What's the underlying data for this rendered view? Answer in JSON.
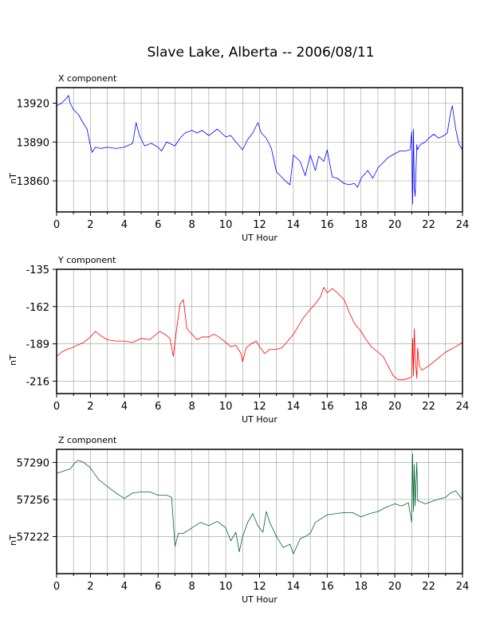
{
  "title": "Slave Lake, Alberta -- 2006/08/11",
  "chart_data": [
    {
      "type": "line",
      "panel_label": "X component",
      "xlabel": "UT Hour",
      "ylabel": "nT",
      "xlim": [
        0,
        24
      ],
      "xticks": [
        0,
        2,
        4,
        6,
        8,
        10,
        12,
        14,
        16,
        18,
        20,
        22,
        24
      ],
      "ylim": [
        13836,
        13932
      ],
      "yticks": [
        13860,
        13890,
        13920
      ],
      "grid": true,
      "color": "#0000ff",
      "x": [
        0,
        0.3,
        0.6,
        0.7,
        0.8,
        1.0,
        1.3,
        1.6,
        1.8,
        2.0,
        2.1,
        2.3,
        2.6,
        3.0,
        3.5,
        4.0,
        4.5,
        4.7,
        4.9,
        5.2,
        5.6,
        6.0,
        6.2,
        6.5,
        7.0,
        7.3,
        7.6,
        8.0,
        8.3,
        8.6,
        9.0,
        9.5,
        10.0,
        10.3,
        10.6,
        11.0,
        11.3,
        11.6,
        11.9,
        12.1,
        12.4,
        12.7,
        13.0,
        13.3,
        13.6,
        13.8,
        14.0,
        14.4,
        14.7,
        15.0,
        15.3,
        15.5,
        15.8,
        16.0,
        16.3,
        16.6,
        17.0,
        17.3,
        17.6,
        17.8,
        18.0,
        18.4,
        18.7,
        19.0,
        19.3,
        19.6,
        20.0,
        20.3,
        20.6,
        20.9,
        21.0,
        21.05,
        21.1,
        21.15,
        21.2,
        21.3,
        21.35,
        21.5,
        21.8,
        22.0,
        22.3,
        22.6,
        22.9,
        23.1,
        23.3,
        23.4,
        23.6,
        23.8,
        24.0
      ],
      "values": [
        13918,
        13920,
        13924,
        13926,
        13920,
        13915,
        13911,
        13904,
        13900,
        13887,
        13882,
        13886,
        13885,
        13886,
        13885,
        13886,
        13889,
        13905,
        13895,
        13887,
        13889,
        13886,
        13883,
        13890,
        13887,
        13893,
        13897,
        13899,
        13897,
        13899,
        13895,
        13900,
        13894,
        13895,
        13890,
        13884,
        13892,
        13897,
        13905,
        13897,
        13893,
        13885,
        13867,
        13863,
        13859,
        13857,
        13880,
        13875,
        13864,
        13880,
        13868,
        13879,
        13875,
        13884,
        13863,
        13862,
        13858,
        13857,
        13858,
        13855,
        13862,
        13868,
        13862,
        13870,
        13874,
        13878,
        13881,
        13883,
        13883,
        13884,
        13898,
        13842,
        13900,
        13855,
        13848,
        13888,
        13884,
        13888,
        13890,
        13893,
        13896,
        13893,
        13895,
        13897,
        13913,
        13918,
        13900,
        13888,
        13884
      ]
    },
    {
      "type": "line",
      "panel_label": "Y component",
      "xlabel": "UT Hour",
      "ylabel": "nT",
      "xlim": [
        0,
        24
      ],
      "xticks": [
        0,
        2,
        4,
        6,
        8,
        10,
        12,
        14,
        16,
        18,
        20,
        22,
        24
      ],
      "ylim": [
        -225,
        -135
      ],
      "yticks": [
        -135,
        -162,
        -189,
        -216
      ],
      "grid": true,
      "color": "#ff0000",
      "x": [
        0,
        0.3,
        0.6,
        0.9,
        1.2,
        1.6,
        2.0,
        2.3,
        2.6,
        3.0,
        3.5,
        4.0,
        4.5,
        5.0,
        5.5,
        5.8,
        6.1,
        6.4,
        6.7,
        6.9,
        7.1,
        7.3,
        7.5,
        7.7,
        8.0,
        8.3,
        8.6,
        9.0,
        9.3,
        9.6,
        10.0,
        10.3,
        10.6,
        10.9,
        11.0,
        11.2,
        11.5,
        11.8,
        12.0,
        12.3,
        12.6,
        13.0,
        13.3,
        13.6,
        14.0,
        14.3,
        14.6,
        15.0,
        15.3,
        15.6,
        15.8,
        16.0,
        16.3,
        16.6,
        17.0,
        17.3,
        17.6,
        18.0,
        18.3,
        18.6,
        19.0,
        19.3,
        19.6,
        19.9,
        20.2,
        20.5,
        20.8,
        21.0,
        21.05,
        21.1,
        21.15,
        21.2,
        21.3,
        21.35,
        21.45,
        21.6,
        22.0,
        22.3,
        22.6,
        23.0,
        23.3,
        23.6,
        24.0
      ],
      "values": [
        -198,
        -195,
        -193,
        -192,
        -190,
        -188,
        -184,
        -180,
        -183,
        -186,
        -187,
        -187,
        -188,
        -185,
        -186,
        -183,
        -180,
        -182,
        -185,
        -198,
        -178,
        -160,
        -157,
        -178,
        -182,
        -186,
        -184,
        -184,
        -182,
        -184,
        -188,
        -191,
        -190,
        -196,
        -202,
        -192,
        -189,
        -187,
        -191,
        -196,
        -193,
        -193,
        -192,
        -188,
        -182,
        -176,
        -170,
        -164,
        -160,
        -155,
        -148,
        -152,
        -149,
        -152,
        -157,
        -166,
        -174,
        -180,
        -186,
        -191,
        -195,
        -198,
        -205,
        -212,
        -215,
        -215,
        -214,
        -213,
        -185,
        -212,
        -178,
        -198,
        -214,
        -192,
        -205,
        -208,
        -205,
        -202,
        -199,
        -195,
        -193,
        -191,
        -188
      ]
    },
    {
      "type": "line",
      "panel_label": "Z component",
      "xlabel": "UT Hour",
      "ylabel": "nT",
      "xlim": [
        0,
        24
      ],
      "xticks": [
        0,
        2,
        4,
        6,
        8,
        10,
        12,
        14,
        16,
        18,
        20,
        22,
        24
      ],
      "ylim": [
        57188,
        57302
      ],
      "yticks": [
        57222,
        57256,
        57290
      ],
      "grid": true,
      "color": "#006633",
      "x": [
        0,
        0.4,
        0.8,
        1.1,
        1.3,
        1.6,
        2.0,
        2.5,
        3.0,
        3.5,
        4.0,
        4.5,
        5.0,
        5.5,
        6.0,
        6.5,
        6.8,
        7.0,
        7.2,
        7.5,
        8.0,
        8.5,
        9.0,
        9.5,
        10.0,
        10.3,
        10.6,
        10.8,
        11.0,
        11.3,
        11.6,
        11.9,
        12.2,
        12.4,
        12.6,
        13.0,
        13.4,
        13.8,
        14.0,
        14.4,
        14.7,
        15.0,
        15.3,
        15.6,
        16.0,
        16.5,
        17.0,
        17.5,
        18.0,
        18.5,
        19.0,
        19.5,
        20.0,
        20.4,
        20.8,
        21.0,
        21.05,
        21.1,
        21.15,
        21.2,
        21.3,
        21.35,
        21.5,
        21.8,
        22.0,
        22.5,
        23.0,
        23.3,
        23.6,
        24.0
      ],
      "values": [
        57280,
        57282,
        57284,
        57290,
        57292,
        57290,
        57285,
        57274,
        57268,
        57262,
        57257,
        57262,
        57263,
        57263,
        57260,
        57260,
        57258,
        57213,
        57225,
        57225,
        57230,
        57235,
        57232,
        57236,
        57230,
        57218,
        57226,
        57208,
        57222,
        57235,
        57243,
        57232,
        57226,
        57245,
        57235,
        57222,
        57212,
        57215,
        57206,
        57220,
        57222,
        57225,
        57235,
        57238,
        57242,
        57243,
        57244,
        57244,
        57240,
        57243,
        57245,
        57249,
        57252,
        57250,
        57253,
        57235,
        57298,
        57245,
        57288,
        57250,
        57290,
        57255,
        57254,
        57252,
        57253,
        57256,
        57258,
        57262,
        57264,
        57256
      ]
    }
  ]
}
